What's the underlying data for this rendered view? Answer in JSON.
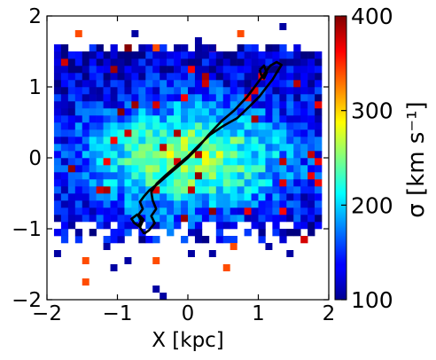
{
  "chart_data": {
    "type": "heatmap",
    "xlabel": "X [kpc]",
    "ylabel": "",
    "xlim": [
      -2,
      2
    ],
    "ylim": [
      -2,
      2
    ],
    "x_ticks": [
      -2,
      -1,
      0,
      1,
      2
    ],
    "y_ticks": [
      -2,
      -1,
      0,
      1,
      2
    ],
    "x_tick_labels": [
      "−2",
      "−1",
      "0",
      "1",
      "2"
    ],
    "y_tick_labels": [
      "−2",
      "−1",
      "0",
      "1",
      "2"
    ],
    "grid": false,
    "colormap": "jet",
    "colorbar": {
      "label": "σ [km s⁻¹]",
      "range": [
        100,
        400
      ],
      "ticks": [
        100,
        200,
        300,
        400
      ],
      "tick_labels": [
        "100",
        "200",
        "300",
        "400"
      ],
      "position": "right"
    },
    "heatmap": {
      "x_range": [
        -2,
        2
      ],
      "y_range": [
        -2,
        2
      ],
      "nx": 40,
      "ny": 40,
      "value_range": [
        100,
        400
      ],
      "core_value": 260,
      "edge_value": 120,
      "core_radius": [
        1.6,
        0.85
      ],
      "noise_amplitude": 70,
      "random_seed": 12345,
      "core_fill_region": {
        "x": [
          -1.95,
          1.95
        ],
        "y": [
          -0.95,
          1.55
        ]
      },
      "outlier_pixels": [
        [
          -1.55,
          1.75
        ],
        [
          -1.35,
          1.45
        ],
        [
          -0.75,
          1.75
        ],
        [
          -0.45,
          1.55
        ],
        [
          0.15,
          1.65
        ],
        [
          0.35,
          1.55
        ],
        [
          0.75,
          1.75
        ],
        [
          1.35,
          1.85
        ],
        [
          -1.85,
          -1.35
        ],
        [
          -1.45,
          -1.45
        ],
        [
          -1.15,
          -1.25
        ],
        [
          -0.85,
          -1.45
        ],
        [
          -0.45,
          -1.45
        ],
        [
          0.05,
          -1.35
        ],
        [
          0.35,
          -1.35
        ],
        [
          0.65,
          -1.25
        ],
        [
          1.15,
          -1.25
        ],
        [
          1.45,
          -1.35
        ],
        [
          -1.45,
          -1.75
        ],
        [
          -0.45,
          -1.85
        ],
        [
          -0.35,
          -1.95
        ],
        [
          0.55,
          -1.55
        ],
        [
          -1.05,
          -1.55
        ]
      ]
    },
    "contour": {
      "color": "#000000",
      "outer": [
        [
          -0.62,
          -1.07
        ],
        [
          -0.68,
          -0.98
        ],
        [
          -0.63,
          -0.87
        ],
        [
          -0.7,
          -0.8
        ],
        [
          -0.64,
          -0.72
        ],
        [
          -0.68,
          -0.62
        ],
        [
          -0.62,
          -0.54
        ],
        [
          -0.55,
          -0.46
        ],
        [
          -0.42,
          -0.36
        ],
        [
          -0.28,
          -0.24
        ],
        [
          -0.14,
          -0.12
        ],
        [
          0.0,
          0.0
        ],
        [
          0.15,
          0.15
        ],
        [
          0.3,
          0.33
        ],
        [
          0.48,
          0.52
        ],
        [
          0.66,
          0.67
        ],
        [
          0.84,
          0.86
        ],
        [
          0.97,
          1.03
        ],
        [
          1.08,
          1.18
        ],
        [
          1.17,
          1.3
        ],
        [
          1.26,
          1.35
        ],
        [
          1.33,
          1.31
        ],
        [
          1.26,
          1.2
        ],
        [
          1.2,
          1.1
        ],
        [
          1.12,
          1.0
        ],
        [
          1.02,
          0.87
        ],
        [
          0.88,
          0.73
        ],
        [
          0.7,
          0.56
        ],
        [
          0.52,
          0.46
        ],
        [
          0.32,
          0.33
        ],
        [
          0.16,
          0.18
        ],
        [
          0.0,
          0.02
        ],
        [
          -0.17,
          -0.12
        ],
        [
          -0.31,
          -0.24
        ],
        [
          -0.44,
          -0.36
        ],
        [
          -0.52,
          -0.48
        ],
        [
          -0.5,
          -0.6
        ],
        [
          -0.45,
          -0.72
        ],
        [
          -0.52,
          -0.82
        ],
        [
          -0.47,
          -0.92
        ],
        [
          -0.55,
          -1.02
        ],
        [
          -0.62,
          -1.07
        ]
      ],
      "bottom_lobe": [
        [
          -0.66,
          -0.88
        ],
        [
          -0.7,
          -0.96
        ],
        [
          -0.76,
          -0.92
        ],
        [
          -0.8,
          -0.86
        ],
        [
          -0.72,
          -0.8
        ],
        [
          -0.66,
          -0.88
        ]
      ],
      "top_lobe": [
        [
          1.02,
          1.24
        ],
        [
          1.08,
          1.3
        ],
        [
          1.12,
          1.2
        ],
        [
          1.08,
          1.12
        ],
        [
          1.04,
          1.17
        ],
        [
          1.02,
          1.24
        ]
      ]
    }
  }
}
